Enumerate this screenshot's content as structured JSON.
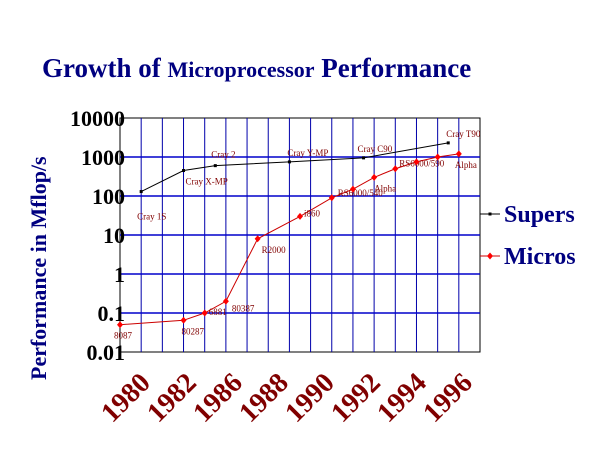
{
  "chart_data": {
    "type": "line",
    "title_part1": "Growth of ",
    "title_part2": "Microprocessor",
    "title_part3": " Performance",
    "ylabel": "Performance in Mflop/s",
    "xlabel": "",
    "yscale": "log",
    "ylim": [
      0.01,
      10000
    ],
    "xlim": [
      1980,
      1997
    ],
    "grid": true,
    "legend_position": "right",
    "y_ticks": [
      "10000",
      "1000",
      "100",
      "10",
      "1",
      "0.1",
      "0.01"
    ],
    "x_ticks": [
      "1980",
      "1982",
      "1986",
      "1988",
      "1990",
      "1992",
      "1994",
      "1996"
    ],
    "series": [
      {
        "name": "Supers",
        "color": "#000000",
        "marker_color": "#000000",
        "points": [
          {
            "x": 1981.0,
            "y": 130,
            "label": "Cray 1S"
          },
          {
            "x": 1983.0,
            "y": 450,
            "label": "Cray X-MP"
          },
          {
            "x": 1984.5,
            "y": 600,
            "label": "Cray 2"
          },
          {
            "x": 1988.0,
            "y": 750,
            "label": "Cray Y-MP"
          },
          {
            "x": 1991.5,
            "y": 950,
            "label": "Cray C90"
          },
          {
            "x": 1995.5,
            "y": 2300,
            "label": "Cray T90"
          }
        ]
      },
      {
        "name": "Micros",
        "color": "#cc0000",
        "marker_color": "#ff0000",
        "points": [
          {
            "x": 1980.0,
            "y": 0.05,
            "label": "8087"
          },
          {
            "x": 1983.0,
            "y": 0.065,
            "label": "80287"
          },
          {
            "x": 1984.0,
            "y": 0.1,
            "label": "6881"
          },
          {
            "x": 1985.0,
            "y": 0.2,
            "label": "80387"
          },
          {
            "x": 1986.5,
            "y": 8,
            "label": "R2000"
          },
          {
            "x": 1988.5,
            "y": 30,
            "label": "i860"
          },
          {
            "x": 1990.0,
            "y": 90,
            "label": "RS6000/540"
          },
          {
            "x": 1991.0,
            "y": 150,
            "label": ""
          },
          {
            "x": 1992.0,
            "y": 300,
            "label": "Alpha"
          },
          {
            "x": 1993.0,
            "y": 500,
            "label": "RS6000/590"
          },
          {
            "x": 1994.0,
            "y": 750,
            "label": ""
          },
          {
            "x": 1995.0,
            "y": 1000,
            "label": ""
          },
          {
            "x": 1996.0,
            "y": 1200,
            "label": "Alpha"
          }
        ]
      }
    ]
  }
}
